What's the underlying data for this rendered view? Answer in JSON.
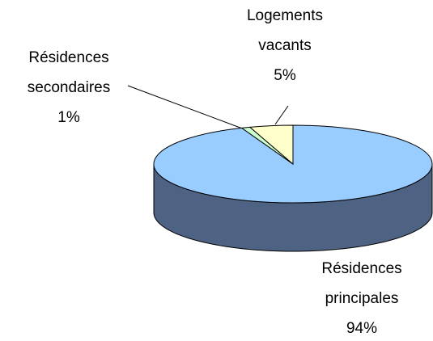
{
  "chart_data": {
    "type": "pie3d",
    "categories": [
      "Résidences principales",
      "Résidences secondaires",
      "Logements vacants"
    ],
    "values": [
      94,
      1,
      5
    ],
    "value_labels": [
      "94%",
      "1%",
      "5%"
    ],
    "colors": [
      "#99ccff",
      "#ccffcc",
      "#ffffcc"
    ]
  }
}
